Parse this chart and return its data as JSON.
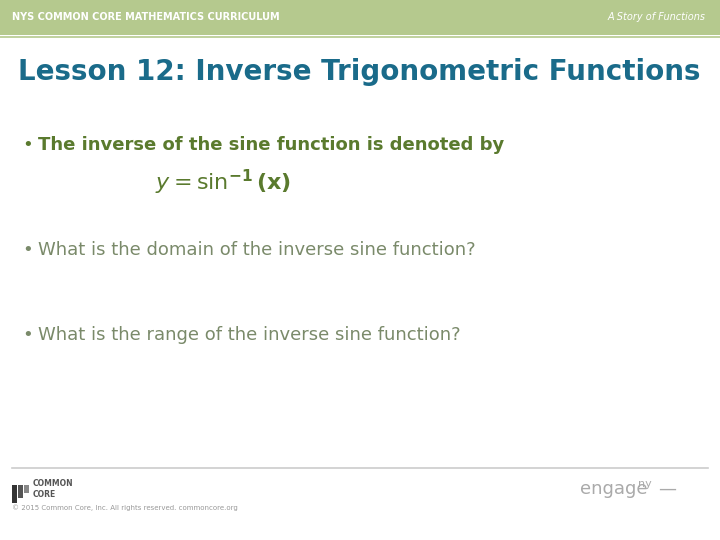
{
  "bg_color": "#ffffff",
  "header_bg_color": "#b5c98e",
  "header_text_left": "NYS COMMON CORE MATHEMATICS CURRICULUM",
  "header_text_right": "A Story of Functions",
  "header_text_color": "#ffffff",
  "header_font_size": 7,
  "title": "Lesson 12: Inverse Trigonometric Functions",
  "title_color": "#1a6b8a",
  "title_font_size": 20,
  "bullet1": "The inverse of the sine function is denoted by",
  "bullet1_color": "#5a7a2e",
  "bullet1_font_size": 13,
  "formula": "$y = \\mathbf{sin^{-1}}\\mathbf{(x)}$",
  "formula_color": "#5a7a2e",
  "formula_font_size": 16,
  "bullet2": "What is the domain of the inverse sine function?",
  "bullet2_color": "#7a8a6a",
  "bullet2_font_size": 13,
  "bullet3": "What is the range of the inverse sine function?",
  "bullet3_color": "#7a8a6a",
  "bullet3_font_size": 13,
  "separator_color": "#b5c98e",
  "footer_line_color": "#cccccc",
  "footer_text": "© 2015 Common Core, Inc. All rights reserved. commoncore.org",
  "footer_text_color": "#999999",
  "footer_font_size": 5,
  "engage_color": "#aaaaaa",
  "engage_font_size": 13,
  "dash_color": "#aaaaaa",
  "logo_bar_colors": [
    "#333333",
    "#555555",
    "#888888"
  ],
  "logo_text_color": "#555555",
  "logo_font_size": 5.5
}
